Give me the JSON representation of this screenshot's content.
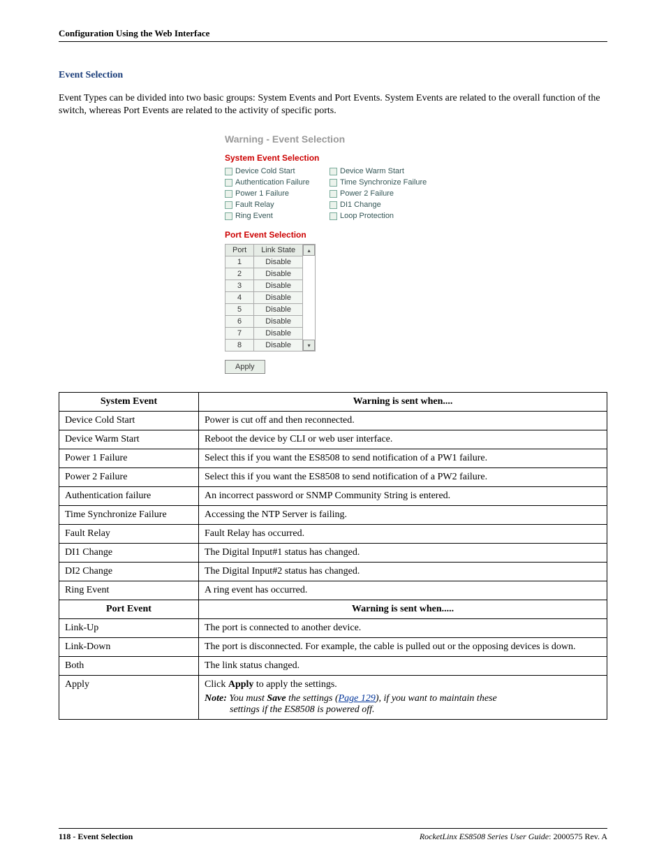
{
  "header": {
    "text": "Configuration Using the Web Interface"
  },
  "section": {
    "title": "Event Selection",
    "intro": "Event Types can be divided into two basic groups: System Events and Port Events. System Events are related to the overall function of the switch, whereas Port Events are related to the activity of specific ports."
  },
  "screenshot": {
    "title": "Warning - Event Selection",
    "sysTitle": "System Event Selection",
    "checks": [
      "Device Cold Start",
      "Device Warm Start",
      "Authentication Failure",
      "Time Synchronize Failure",
      "Power 1 Failure",
      "Power 2 Failure",
      "Fault Relay",
      "DI1 Change",
      "Ring Event",
      "Loop Protection"
    ],
    "portTitle": "Port Event Selection",
    "portHeaders": {
      "port": "Port",
      "link": "Link State"
    },
    "portRows": [
      {
        "p": "1",
        "s": "Disable"
      },
      {
        "p": "2",
        "s": "Disable"
      },
      {
        "p": "3",
        "s": "Disable"
      },
      {
        "p": "4",
        "s": "Disable"
      },
      {
        "p": "5",
        "s": "Disable"
      },
      {
        "p": "6",
        "s": "Disable"
      },
      {
        "p": "7",
        "s": "Disable"
      },
      {
        "p": "8",
        "s": "Disable"
      }
    ],
    "applyLabel": "Apply"
  },
  "table": {
    "head1a": "System Event",
    "head1b": "Warning is sent when....",
    "sysRows": [
      {
        "a": "Device Cold Start",
        "b": "Power is cut off and then reconnected."
      },
      {
        "a": "Device Warm Start",
        "b": "Reboot the device by CLI or web user interface."
      },
      {
        "a": "Power 1 Failure",
        "b": "Select this if you want the ES8508 to send notification of a PW1 failure."
      },
      {
        "a": "Power 2 Failure",
        "b": "Select this if you want the ES8508 to send notification of a PW2 failure."
      },
      {
        "a": "Authentication failure",
        "b": "An incorrect password or SNMP Community String is entered."
      },
      {
        "a": "Time Synchronize Failure",
        "b": "Accessing the NTP Server is failing."
      },
      {
        "a": "Fault Relay",
        "b": "Fault Relay has occurred."
      },
      {
        "a": "DI1 Change",
        "b": "The Digital Input#1 status has changed."
      },
      {
        "a": "DI2 Change",
        "b": "The Digital Input#2 status has changed."
      },
      {
        "a": "Ring Event",
        "b": "A ring event has occurred."
      }
    ],
    "head2a": "Port Event",
    "head2b": "Warning is sent when.....",
    "portRows": [
      {
        "a": "Link-Up",
        "b": "The port is connected to another device."
      },
      {
        "a": "Link-Down",
        "b": "The port is disconnected. For example, the cable is pulled out or the opposing devices is down."
      },
      {
        "a": "Both",
        "b": "The link status changed."
      }
    ],
    "applyRow": {
      "a": "Apply",
      "line1_pre": "Click ",
      "line1_bold": "Apply",
      "line1_post": " to apply the settings.",
      "note_bold1": "Note:",
      "note_mid1": "  You must ",
      "note_bold2": "Save",
      "note_mid2": " the settings (",
      "note_link": "Page 129",
      "note_mid3": "), if you want to maintain these",
      "note_line2": "settings if the ES8508 is powered off."
    }
  },
  "footer": {
    "leftBold": "118 - Event Selection",
    "rightEmph": "RocketLinx ES8508 Series  User Guide",
    "rightPlain": ": 2000575 Rev. A"
  }
}
